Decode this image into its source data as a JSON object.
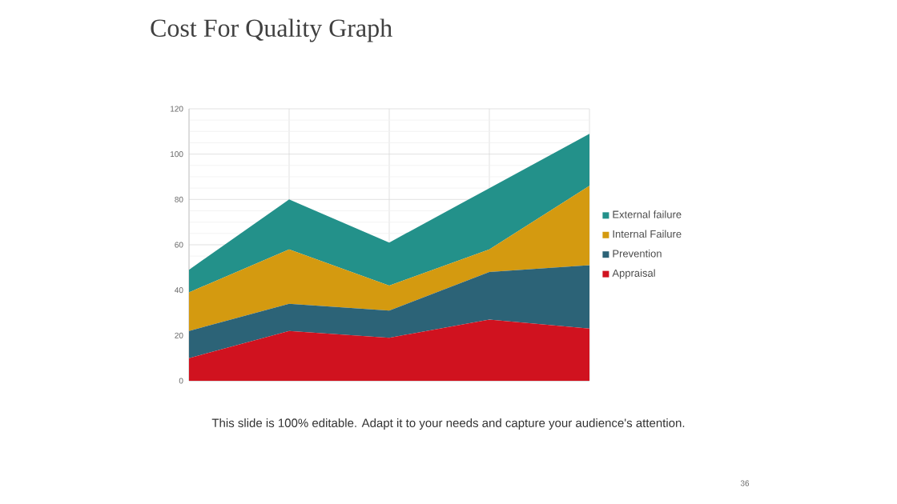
{
  "chart_data": {
    "type": "area",
    "title": "Cost For Quality Graph",
    "annotations": [
      "This slide is 100% editable. Adapt it to your needs and capture your audience's attention.",
      "36"
    ],
    "categories": [
      null,
      null,
      null,
      null,
      null
    ],
    "stacked": true,
    "series": [
      {
        "name": "Appraisal",
        "color": "#d0121f",
        "values": [
          10,
          22,
          19,
          27,
          23
        ]
      },
      {
        "name": "Prevention",
        "color": "#2c6377",
        "values": [
          12,
          12,
          12,
          21,
          28
        ]
      },
      {
        "name": "Internal Failure",
        "color": "#d49a10",
        "values": [
          17,
          24,
          11,
          10,
          35
        ]
      },
      {
        "name": "External failure",
        "color": "#23918a",
        "values": [
          10,
          22,
          19,
          27,
          23
        ]
      }
    ],
    "ylim": [
      0,
      120
    ],
    "yticks": [
      0,
      20,
      40,
      60,
      80,
      100,
      120
    ],
    "grid": true,
    "legend": "right",
    "tick_labels": "y"
  }
}
